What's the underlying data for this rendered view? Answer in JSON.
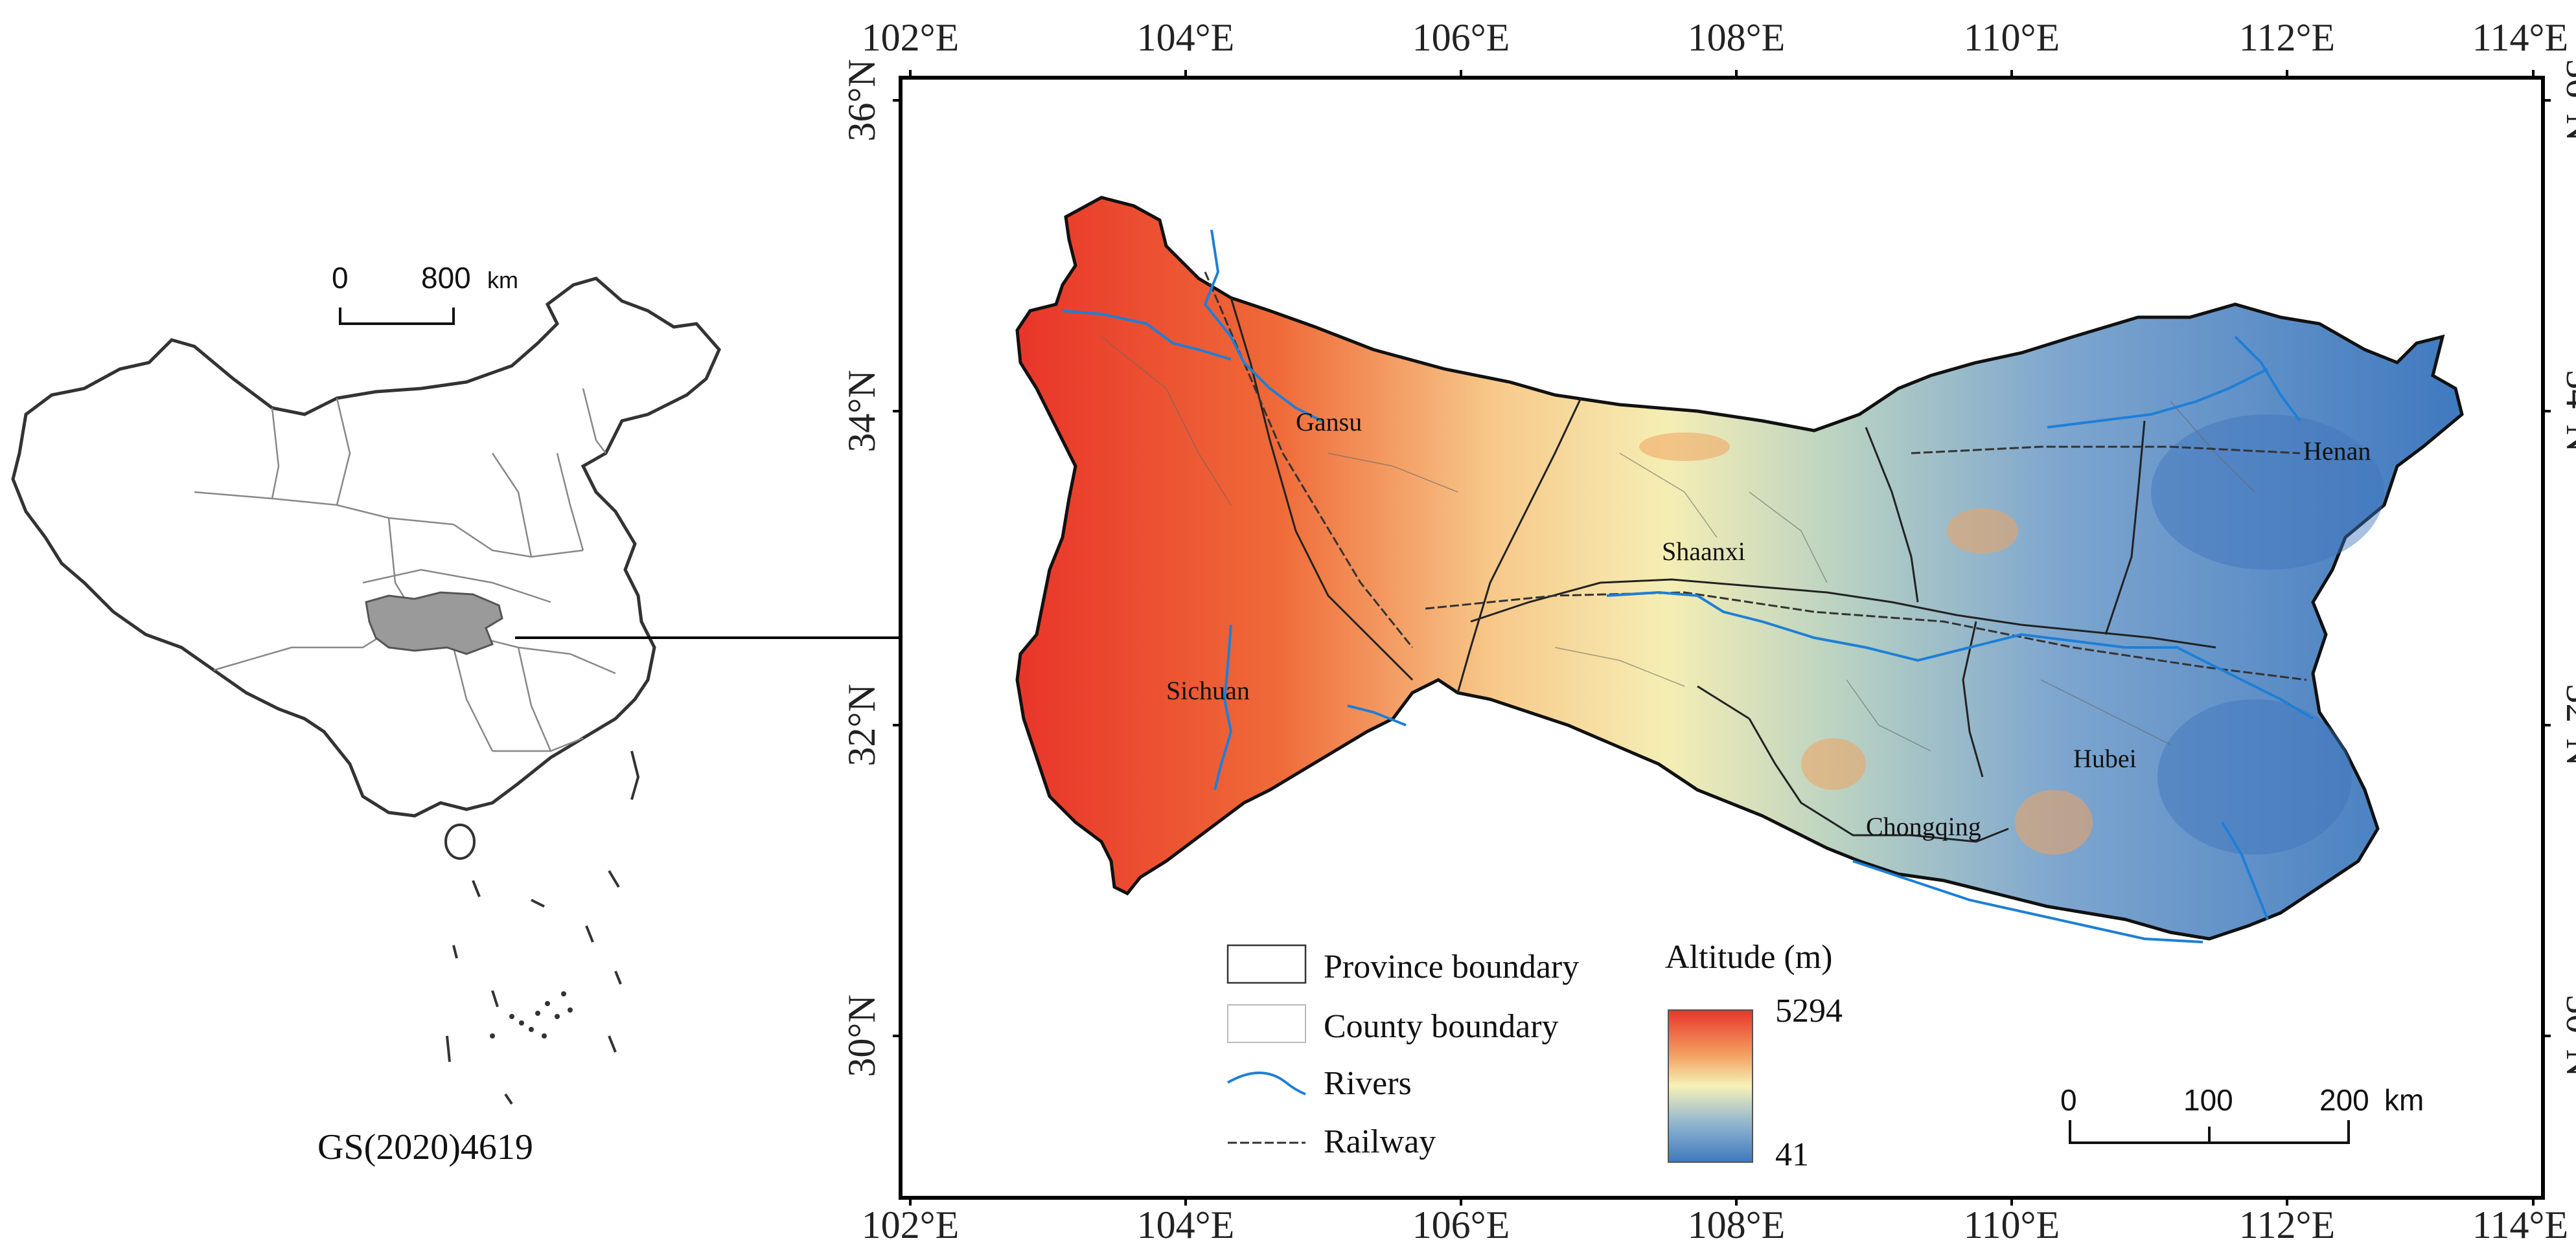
{
  "inset_map": {
    "scale_bar": {
      "start": "0",
      "end": "800",
      "unit": "km"
    },
    "caption": "GS(2020)4619"
  },
  "main_map": {
    "lon_labels": [
      "102°E",
      "104°E",
      "106°E",
      "108°E",
      "110°E",
      "112°E",
      "114°E"
    ],
    "lat_labels": [
      "36°N",
      "34°N",
      "32°N",
      "30°N"
    ],
    "provinces": [
      "Gansu",
      "Shaanxi",
      "Henan",
      "Sichuan",
      "Hubei",
      "Chongqing"
    ],
    "legend": {
      "items": [
        {
          "label": "Province boundary",
          "symbol": "province"
        },
        {
          "label": "County boundary",
          "symbol": "county"
        },
        {
          "label": "Rivers",
          "symbol": "river"
        },
        {
          "label": "Railway",
          "symbol": "railway"
        }
      ],
      "altitude": {
        "title": "Altitude (m)",
        "max": "5294",
        "min": "41",
        "color_high": "#e8352a",
        "color_mid": "#f6f2b8",
        "color_low": "#3f79bf"
      }
    },
    "scale_bar": {
      "ticks": [
        "0",
        "100",
        "200"
      ],
      "unit": "km"
    }
  }
}
